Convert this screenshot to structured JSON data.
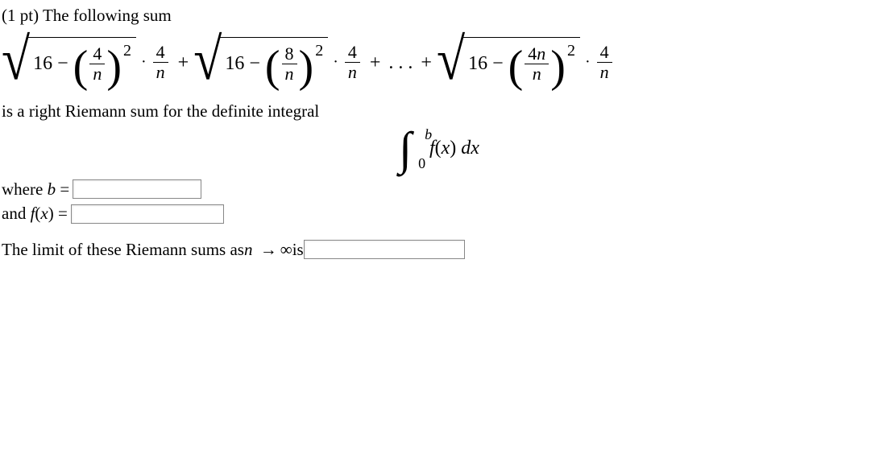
{
  "prompt": {
    "points": "(1 pt)",
    "text": "The following sum"
  },
  "sum": {
    "constant": "16",
    "minus": "−",
    "plus": "+",
    "dots": ". . .",
    "dot": "·",
    "exp": "2",
    "den": "n",
    "outer_numer": "4",
    "terms": [
      {
        "numer": "4"
      },
      {
        "numer": "8"
      },
      {
        "numer": "4n"
      }
    ]
  },
  "riemann_text": "is a right Riemann sum for the definite integral",
  "integral": {
    "lower": "0",
    "upper": "b",
    "integrand_f": "f",
    "integrand_paren_open": "(",
    "integrand_x": "x",
    "integrand_paren_close": ")",
    "dx_space": " d",
    "dx_x": "x"
  },
  "where": {
    "b_label_prefix": "where ",
    "b_var": "b",
    "equals": " = ",
    "f_label_prefix": "and ",
    "f_var": "f",
    "f_paren_open": "(",
    "f_x": "x",
    "f_paren_close": ")"
  },
  "limit": {
    "text1": "The limit of these Riemann sums as ",
    "var": "n",
    "arrow": "→",
    "inf": "∞",
    "text2": " is "
  },
  "inputs": {
    "b_width": 150,
    "fx_width": 180,
    "limit_width": 190
  },
  "style": {
    "font_size_body": 21
  }
}
